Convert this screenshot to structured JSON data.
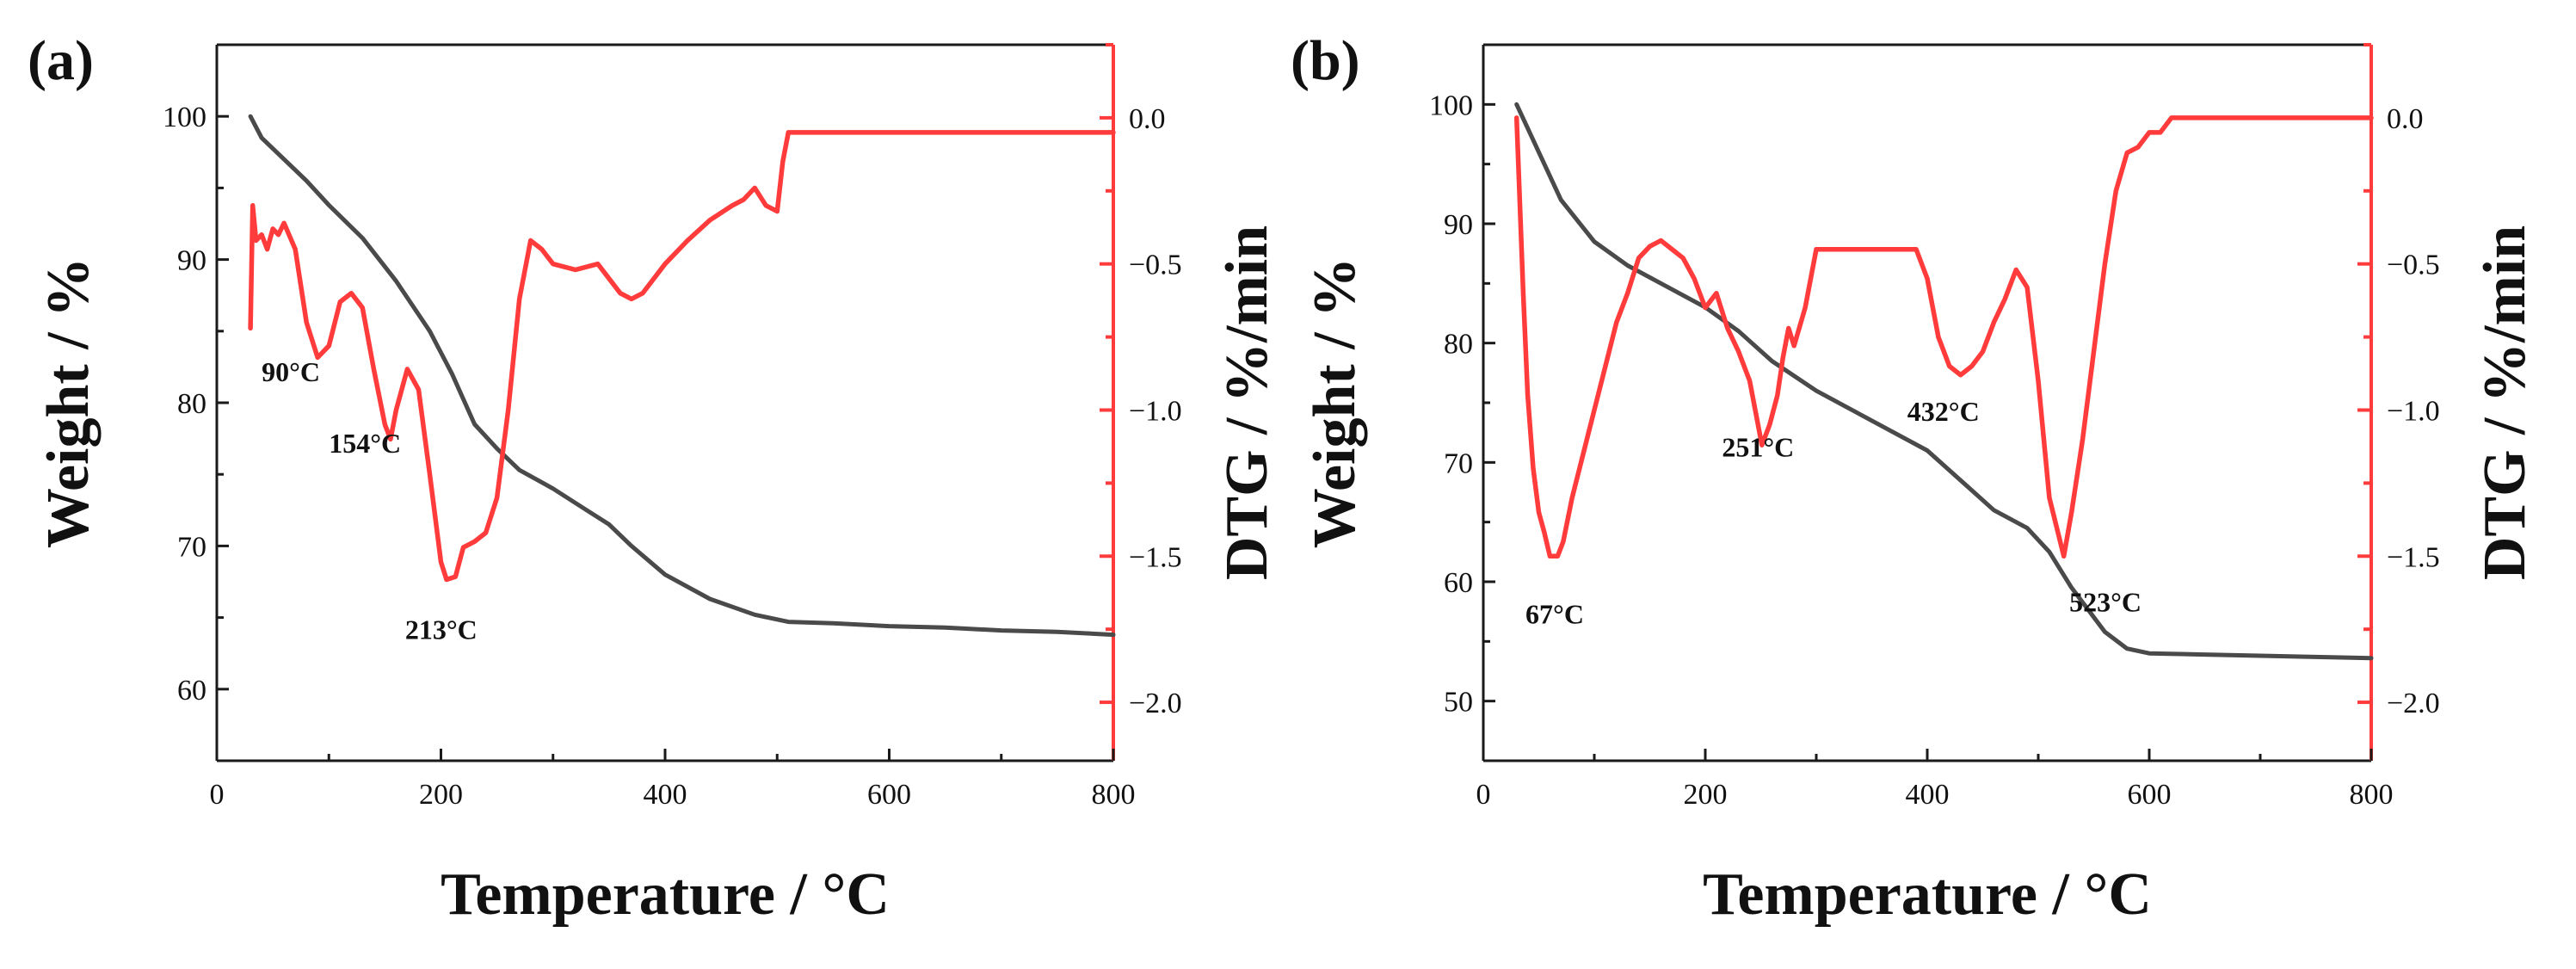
{
  "figure": {
    "panel_a_label": "(a)",
    "panel_b_label": "(b)"
  },
  "colors": {
    "weight": "#4a4a4a",
    "dtg": "#ff3b3b",
    "axis": "#1a1a1a"
  },
  "chart_data": [
    {
      "type": "line",
      "panel": "a",
      "xlabel": "Temperature / °C",
      "ylabel_left": "Weight / %",
      "ylabel_right": "DTG / %/min",
      "xlim": [
        0,
        800
      ],
      "ylim_left": [
        55,
        105
      ],
      "ylim_right": [
        -2.2,
        0.25
      ],
      "x_ticks": [
        0,
        200,
        400,
        600,
        800
      ],
      "x_tick_labels": [
        "0",
        "200",
        "400",
        "600",
        "800"
      ],
      "y_left_ticks": [
        60,
        70,
        80,
        90,
        100
      ],
      "y_left_tick_labels": [
        "60",
        "70",
        "80",
        "90",
        "100"
      ],
      "y_right_ticks": [
        0.0,
        -0.5,
        -1.0,
        -1.5,
        -2.0
      ],
      "y_right_tick_labels": [
        "0.0",
        "−0.5",
        "−1.0",
        "−1.5",
        "−2.0"
      ],
      "series": [
        {
          "name": "Weight",
          "axis": "left",
          "color": "#4a4a4a",
          "x": [
            30,
            40,
            60,
            80,
            100,
            130,
            160,
            190,
            210,
            230,
            250,
            270,
            300,
            330,
            350,
            370,
            400,
            440,
            480,
            510,
            550,
            600,
            650,
            700,
            750,
            800
          ],
          "y": [
            100,
            98.5,
            97,
            95.5,
            93.8,
            91.5,
            88.5,
            85,
            82,
            78.5,
            76.8,
            75.3,
            74,
            72.5,
            71.5,
            70,
            68,
            66.3,
            65.2,
            64.7,
            64.6,
            64.4,
            64.3,
            64.1,
            64.0,
            63.8
          ]
        },
        {
          "name": "DTG",
          "axis": "right",
          "color": "#ff3b3b",
          "x": [
            30,
            32,
            35,
            40,
            45,
            50,
            55,
            60,
            70,
            80,
            90,
            100,
            110,
            120,
            130,
            140,
            150,
            155,
            160,
            170,
            180,
            190,
            200,
            205,
            213,
            220,
            230,
            240,
            250,
            260,
            270,
            280,
            290,
            300,
            320,
            340,
            360,
            370,
            380,
            400,
            420,
            440,
            460,
            470,
            480,
            490,
            500,
            505,
            510,
            550,
            600,
            700,
            800
          ],
          "y": [
            -0.72,
            -0.3,
            -0.42,
            -0.4,
            -0.45,
            -0.38,
            -0.4,
            -0.36,
            -0.45,
            -0.7,
            -0.82,
            -0.78,
            -0.63,
            -0.6,
            -0.65,
            -0.86,
            -1.05,
            -1.1,
            -1.0,
            -0.86,
            -0.93,
            -1.22,
            -1.52,
            -1.58,
            -1.57,
            -1.47,
            -1.45,
            -1.42,
            -1.3,
            -1.0,
            -0.62,
            -0.42,
            -0.45,
            -0.5,
            -0.52,
            -0.5,
            -0.6,
            -0.62,
            -0.6,
            -0.5,
            -0.42,
            -0.35,
            -0.3,
            -0.28,
            -0.24,
            -0.3,
            -0.32,
            -0.15,
            -0.05,
            -0.05,
            -0.05,
            -0.05,
            -0.05
          ]
        }
      ],
      "annotations": [
        {
          "text": "90°C",
          "x": 40,
          "y_left": 81.5
        },
        {
          "text": "154°C",
          "x": 100,
          "y_left": 76.5
        },
        {
          "text": "213°C",
          "x": 168,
          "y_left": 63.5
        }
      ]
    },
    {
      "type": "line",
      "panel": "b",
      "xlabel": "Temperature / °C",
      "ylabel_left": "Weight / %",
      "ylabel_right": "DTG / %/min",
      "xlim": [
        0,
        800
      ],
      "ylim_left": [
        45,
        105
      ],
      "ylim_right": [
        -2.2,
        0.25
      ],
      "x_ticks": [
        0,
        200,
        400,
        600,
        800
      ],
      "x_tick_labels": [
        "0",
        "200",
        "400",
        "600",
        "800"
      ],
      "y_left_ticks": [
        50,
        60,
        70,
        80,
        90,
        100
      ],
      "y_left_tick_labels": [
        "50",
        "60",
        "70",
        "80",
        "90",
        "100"
      ],
      "y_right_ticks": [
        0.0,
        -0.5,
        -1.0,
        -1.5,
        -2.0
      ],
      "y_right_tick_labels": [
        "0.0",
        "−0.5",
        "−1.0",
        "−1.5",
        "−2.0"
      ],
      "series": [
        {
          "name": "Weight",
          "axis": "left",
          "color": "#4a4a4a",
          "x": [
            30,
            50,
            70,
            100,
            130,
            160,
            200,
            230,
            260,
            300,
            350,
            400,
            430,
            460,
            490,
            510,
            530,
            560,
            580,
            600,
            650,
            700,
            750,
            800
          ],
          "y": [
            100,
            96,
            92,
            88.5,
            86.5,
            85,
            83,
            81,
            78.5,
            76,
            73.5,
            71,
            68.5,
            66,
            64.5,
            62.5,
            59.5,
            55.8,
            54.4,
            54,
            53.9,
            53.8,
            53.7,
            53.6
          ]
        },
        {
          "name": "DTG",
          "axis": "right",
          "color": "#ff3b3b",
          "x": [
            30,
            32,
            36,
            40,
            45,
            50,
            55,
            60,
            67,
            72,
            80,
            90,
            100,
            110,
            120,
            130,
            140,
            150,
            160,
            170,
            180,
            190,
            200,
            210,
            220,
            230,
            240,
            251,
            258,
            265,
            270,
            275,
            280,
            290,
            300,
            320,
            340,
            360,
            380,
            390,
            400,
            410,
            420,
            430,
            440,
            450,
            460,
            470,
            480,
            490,
            500,
            510,
            523,
            530,
            540,
            550,
            560,
            570,
            580,
            590,
            600,
            610,
            620,
            700,
            800
          ],
          "y": [
            0.0,
            -0.2,
            -0.6,
            -0.95,
            -1.2,
            -1.35,
            -1.42,
            -1.5,
            -1.5,
            -1.45,
            -1.3,
            -1.15,
            -1.0,
            -0.85,
            -0.7,
            -0.6,
            -0.48,
            -0.44,
            -0.42,
            -0.45,
            -0.48,
            -0.55,
            -0.65,
            -0.6,
            -0.72,
            -0.8,
            -0.9,
            -1.12,
            -1.05,
            -0.95,
            -0.82,
            -0.72,
            -0.78,
            -0.65,
            -0.45,
            -0.45,
            -0.45,
            -0.45,
            -0.45,
            -0.45,
            -0.55,
            -0.75,
            -0.85,
            -0.88,
            -0.85,
            -0.8,
            -0.7,
            -0.62,
            -0.52,
            -0.58,
            -0.9,
            -1.3,
            -1.5,
            -1.35,
            -1.1,
            -0.8,
            -0.5,
            -0.25,
            -0.12,
            -0.1,
            -0.05,
            -0.05,
            0.0,
            0.0,
            0.0
          ]
        }
      ],
      "annotations": [
        {
          "text": "67°C",
          "x": 38,
          "y_left": 56.5
        },
        {
          "text": "251°C",
          "x": 215,
          "y_left": 70.5
        },
        {
          "text": "432°C",
          "x": 382,
          "y_left": 73.5
        },
        {
          "text": "523°C",
          "x": 528,
          "y_left": 57.5
        }
      ]
    }
  ]
}
